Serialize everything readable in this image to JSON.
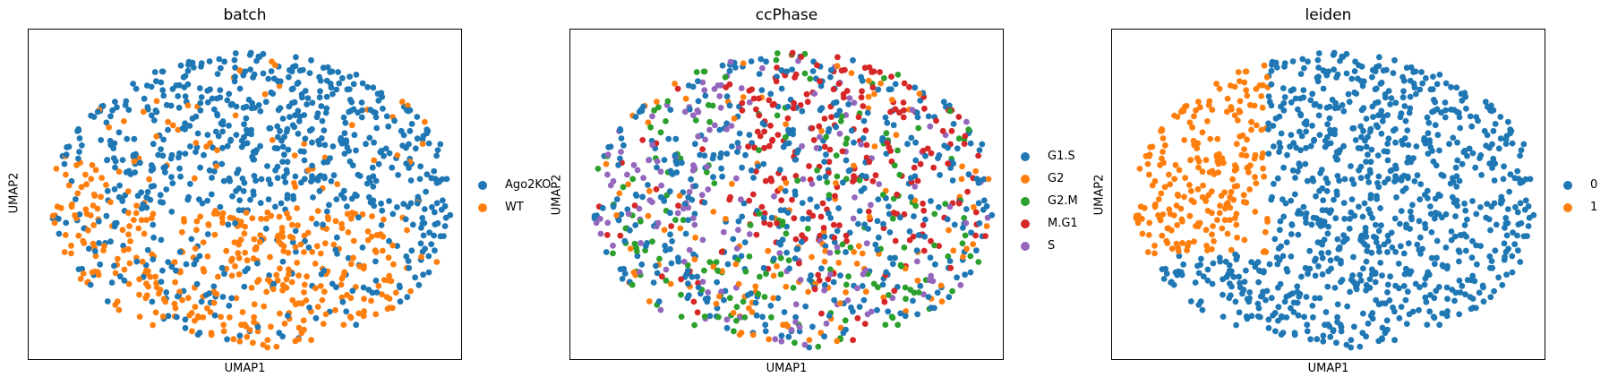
{
  "chart_data": [
    {
      "type": "scatter",
      "title": "batch",
      "xlabel": "UMAP1",
      "ylabel": "UMAP2",
      "grid": false,
      "legend_placement": "right",
      "categories": [
        "Ago2KO",
        "WT"
      ],
      "colors": [
        "#1f77b4",
        "#ff7f0e"
      ]
    },
    {
      "type": "scatter",
      "title": "ccPhase",
      "xlabel": "UMAP1",
      "ylabel": "UMAP2",
      "grid": false,
      "legend_placement": "right",
      "categories": [
        "G1.S",
        "G2",
        "G2.M",
        "M.G1",
        "S"
      ],
      "colors": [
        "#1f77b4",
        "#ff7f0e",
        "#2ca02c",
        "#d62728",
        "#9467bd"
      ]
    },
    {
      "type": "scatter",
      "title": "leiden",
      "xlabel": "UMAP1",
      "ylabel": "UMAP2",
      "grid": false,
      "legend_placement": "right",
      "categories": [
        "0",
        "1"
      ],
      "colors": [
        "#1f77b4",
        "#ff7f0e"
      ]
    }
  ]
}
